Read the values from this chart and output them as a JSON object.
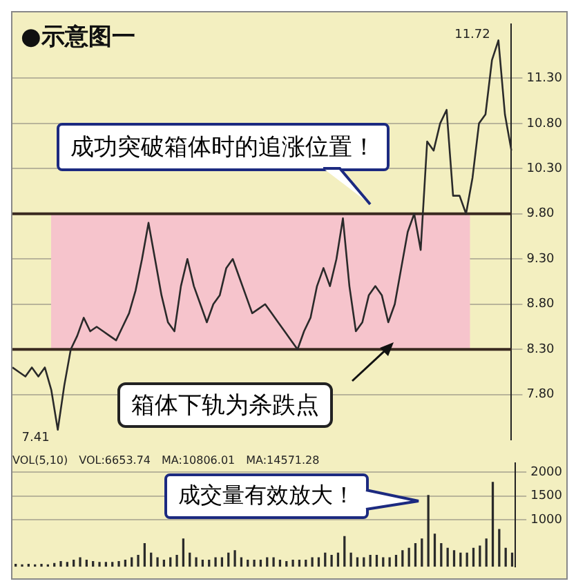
{
  "chart_data": [
    {
      "type": "line",
      "title": "●示意图一",
      "categories": [
        null,
        null,
        null,
        null,
        null,
        null,
        null,
        null,
        null,
        null,
        null,
        null,
        null,
        null,
        null,
        null,
        null,
        null,
        null,
        null,
        null,
        null,
        null,
        null,
        null,
        null,
        null,
        null,
        null,
        null,
        null,
        null,
        null,
        null,
        null,
        null,
        null,
        null,
        null,
        null,
        null,
        null,
        null,
        null,
        null,
        null,
        null,
        null,
        null,
        null,
        null,
        null,
        null,
        null,
        null,
        null,
        null,
        null,
        null,
        null,
        null,
        null,
        null,
        null,
        null,
        null,
        null,
        null,
        null,
        null,
        null,
        null,
        null,
        null,
        null,
        null,
        null,
        null
      ],
      "series": [
        {
          "color": "#2a2a2a",
          "values": [
            8.1,
            8.05,
            8.0,
            8.1,
            8.0,
            8.1,
            7.85,
            7.41,
            7.9,
            8.3,
            8.45,
            8.65,
            8.5,
            8.55,
            8.5,
            8.45,
            8.4,
            8.55,
            8.7,
            8.95,
            9.3,
            9.7,
            9.3,
            8.9,
            8.6,
            8.5,
            9.0,
            9.3,
            9.0,
            8.8,
            8.6,
            8.8,
            8.9,
            9.2,
            9.3,
            9.1,
            8.9,
            8.7,
            8.75,
            8.8,
            8.7,
            8.6,
            8.5,
            8.4,
            8.3,
            8.5,
            8.65,
            9.0,
            9.2,
            9.0,
            9.3,
            9.75,
            9.0,
            8.5,
            8.6,
            8.9,
            9.0,
            8.9,
            8.6,
            8.8,
            9.2,
            9.6,
            9.8,
            9.4,
            10.6,
            10.5,
            10.8,
            10.95,
            10.0,
            10.0,
            9.8,
            10.2,
            10.8,
            10.9,
            11.5,
            11.72,
            10.9,
            10.5
          ],
          "value_labels": [
            null,
            null,
            null,
            null,
            null,
            null,
            null,
            "7.41",
            null,
            null,
            null,
            null,
            null,
            null,
            null,
            null,
            null,
            null,
            null,
            null,
            null,
            null,
            null,
            null,
            null,
            null,
            null,
            null,
            null,
            null,
            null,
            null,
            null,
            null,
            null,
            null,
            null,
            null,
            null,
            null,
            null,
            null,
            null,
            null,
            null,
            null,
            null,
            null,
            null,
            null,
            null,
            null,
            null,
            null,
            null,
            null,
            null,
            null,
            null,
            null,
            null,
            null,
            null,
            null,
            null,
            null,
            null,
            null,
            null,
            null,
            null,
            null,
            null,
            null,
            null,
            "11.72",
            null,
            null
          ]
        }
      ],
      "ylim": [
        7.3,
        11.9
      ],
      "yticks": [
        {
          "value": 7.8,
          "label": "7.80"
        },
        {
          "value": 8.3,
          "label": "8.30"
        },
        {
          "value": 8.8,
          "label": "8.80"
        },
        {
          "value": 9.3,
          "label": "9.30"
        },
        {
          "value": 9.8,
          "label": "9.80"
        },
        {
          "value": 10.3,
          "label": "10.30"
        },
        {
          "value": 10.8,
          "label": "10.80"
        },
        {
          "value": 11.3,
          "label": "11.30"
        }
      ],
      "grid": "y",
      "tick_labels": "y",
      "marker": "none",
      "bands": [
        {
          "axis": "y",
          "from": 8.3,
          "to": 9.8,
          "color": "#f6c4cc"
        }
      ],
      "annotations": [
        "成功突破箱体时的追涨位置！",
        "箱体下轨为杀跌点"
      ]
    },
    {
      "type": "bar",
      "categories": [
        null,
        null,
        null,
        null,
        null,
        null,
        null,
        null,
        null,
        null,
        null,
        null,
        null,
        null,
        null,
        null,
        null,
        null,
        null,
        null,
        null,
        null,
        null,
        null,
        null,
        null,
        null,
        null,
        null,
        null,
        null,
        null,
        null,
        null,
        null,
        null,
        null,
        null,
        null,
        null,
        null,
        null,
        null,
        null,
        null,
        null,
        null,
        null,
        null,
        null,
        null,
        null,
        null,
        null,
        null,
        null,
        null,
        null,
        null,
        null,
        null,
        null,
        null,
        null,
        null,
        null,
        null,
        null,
        null,
        null,
        null,
        null,
        null,
        null,
        null,
        null,
        null,
        null
      ],
      "series": [
        {
          "color": "#2a2a2a",
          "values": [
            60,
            50,
            60,
            50,
            60,
            50,
            80,
            120,
            100,
            150,
            200,
            150,
            120,
            100,
            100,
            100,
            120,
            150,
            200,
            250,
            500,
            300,
            200,
            150,
            200,
            250,
            600,
            300,
            200,
            150,
            150,
            200,
            200,
            300,
            350,
            200,
            150,
            150,
            150,
            200,
            200,
            150,
            120,
            150,
            150,
            150,
            200,
            200,
            300,
            250,
            300,
            650,
            300,
            200,
            200,
            250,
            250,
            200,
            200,
            250,
            350,
            400,
            500,
            600,
            1520,
            700,
            500,
            400,
            350,
            300,
            300,
            400,
            450,
            600,
            1800,
            800,
            400,
            300
          ]
        }
      ],
      "ylim": [
        0,
        2200
      ],
      "yticks": [
        1000,
        1500,
        2000
      ],
      "grid": "y",
      "tick_labels": "y",
      "annotations": [
        "VOL(5,10)",
        "VOL:6653.74",
        "MA:10806.01",
        "MA:14571.28",
        "成交量有效放大！"
      ]
    }
  ]
}
